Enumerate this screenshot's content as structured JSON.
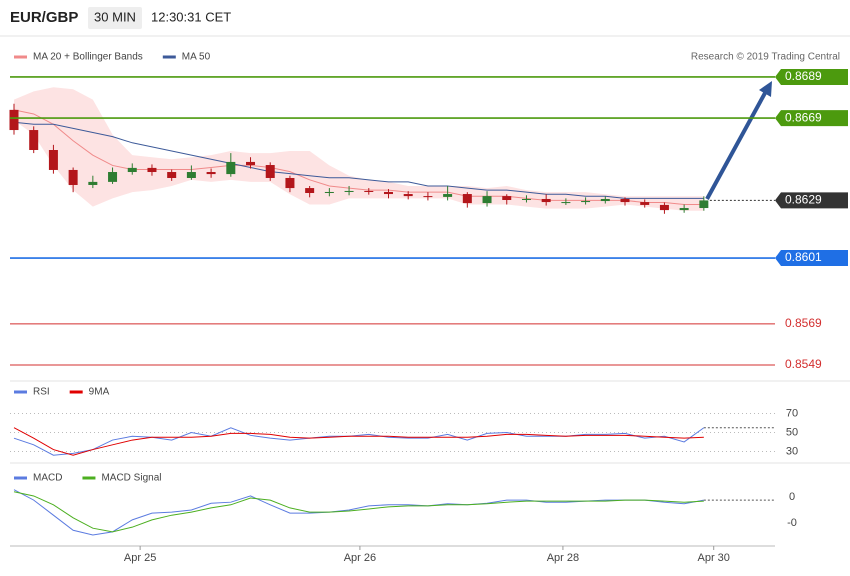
{
  "header": {
    "symbol": "EUR/GBP",
    "interval": "30 MIN",
    "time": "12:30:31 CET"
  },
  "chart_data": [
    {
      "type": "candlestick",
      "credit": "Research © 2019 Trading Central",
      "open": [
        0.8673,
        0.86632,
        0.86535,
        0.86438,
        0.86365,
        0.8638,
        0.86428,
        0.86448,
        0.86428,
        0.86399,
        0.86428,
        0.86418,
        0.86477,
        0.86462,
        0.86399,
        0.8635,
        0.86326,
        0.86331,
        0.86336,
        0.86331,
        0.86321,
        0.86311,
        0.86307,
        0.86321,
        0.86277,
        0.86311,
        0.86292,
        0.86297,
        0.86282,
        0.86282,
        0.86287,
        0.86297,
        0.86282,
        0.86268,
        0.86243,
        0.86253
      ],
      "high": [
        0.8676,
        0.8665,
        0.8656,
        0.8645,
        0.8641,
        0.8645,
        0.8647,
        0.86465,
        0.8644,
        0.8646,
        0.86445,
        0.8652,
        0.865,
        0.86475,
        0.8641,
        0.8636,
        0.8635,
        0.8636,
        0.8635,
        0.86345,
        0.86335,
        0.8633,
        0.8636,
        0.8633,
        0.86335,
        0.8632,
        0.86315,
        0.8632,
        0.863,
        0.86305,
        0.8631,
        0.86305,
        0.86295,
        0.8628,
        0.8627,
        0.8631
      ],
      "low": [
        0.8661,
        0.8652,
        0.8642,
        0.8633,
        0.8635,
        0.8637,
        0.86415,
        0.8641,
        0.86385,
        0.8639,
        0.864,
        0.86405,
        0.86445,
        0.86385,
        0.8633,
        0.86305,
        0.8631,
        0.86315,
        0.86318,
        0.863,
        0.86295,
        0.8629,
        0.8629,
        0.86255,
        0.8626,
        0.8627,
        0.8628,
        0.86265,
        0.86268,
        0.8627,
        0.86275,
        0.86265,
        0.86255,
        0.86225,
        0.8623,
        0.8624
      ],
      "close": [
        0.86632,
        0.86535,
        0.86438,
        0.86365,
        0.8638,
        0.86428,
        0.86448,
        0.86428,
        0.86399,
        0.86428,
        0.86418,
        0.86477,
        0.86462,
        0.86399,
        0.8635,
        0.86326,
        0.86331,
        0.86336,
        0.86331,
        0.86321,
        0.86311,
        0.86307,
        0.86321,
        0.86277,
        0.86311,
        0.86292,
        0.86297,
        0.86282,
        0.86282,
        0.86287,
        0.86297,
        0.86282,
        0.86268,
        0.86243,
        0.86253,
        0.8629
      ],
      "up_color": "#2e7d32",
      "down_color": "#b3161b",
      "series": [
        {
          "name": "MA 20 + Bollinger Bands",
          "color": "#f08a8a",
          "band_color": "#fde3e3",
          "values": [
            0.8673,
            0.8671,
            0.8666,
            0.8658,
            0.8651,
            0.8646,
            0.8644,
            0.8644,
            0.8644,
            0.8644,
            0.8645,
            0.8646,
            0.8646,
            0.8645,
            0.8643,
            0.8639,
            0.8636,
            0.8635,
            0.8634,
            0.8634,
            0.8633,
            0.8633,
            0.8633,
            0.8631,
            0.8631,
            0.8631,
            0.863,
            0.8629,
            0.8629,
            0.8629,
            0.8629,
            0.8629,
            0.8628,
            0.8628,
            0.8627,
            0.8627
          ],
          "upper": [
            0.8678,
            0.8682,
            0.8684,
            0.8683,
            0.8678,
            0.8661,
            0.8651,
            0.865,
            0.8649,
            0.865,
            0.8651,
            0.8653,
            0.8652,
            0.8652,
            0.8653,
            0.8653,
            0.8646,
            0.8641,
            0.8639,
            0.8638,
            0.8636,
            0.8636,
            0.8636,
            0.8636,
            0.8635,
            0.8636,
            0.8634,
            0.8633,
            0.8633,
            0.8633,
            0.8632,
            0.8631,
            0.8631,
            0.8631,
            0.8631,
            0.8631
          ],
          "lower": [
            0.8668,
            0.8661,
            0.8646,
            0.8634,
            0.8626,
            0.863,
            0.8633,
            0.8634,
            0.8636,
            0.8639,
            0.8638,
            0.8639,
            0.8638,
            0.8638,
            0.8632,
            0.8627,
            0.8627,
            0.863,
            0.863,
            0.863,
            0.863,
            0.863,
            0.863,
            0.8627,
            0.8627,
            0.8627,
            0.8626,
            0.8625,
            0.8625,
            0.8625,
            0.8626,
            0.8627,
            0.8626,
            0.8625,
            0.8624,
            0.8624
          ]
        },
        {
          "name": "MA 50",
          "color": "#3d5a99",
          "values": [
            0.8667,
            0.8666,
            0.8666,
            0.8664,
            0.8662,
            0.866,
            0.8657,
            0.8655,
            0.8653,
            0.8651,
            0.8649,
            0.8647,
            0.8645,
            0.8643,
            0.8642,
            0.8641,
            0.864,
            0.864,
            0.8639,
            0.8638,
            0.8638,
            0.8636,
            0.8636,
            0.8635,
            0.8634,
            0.8634,
            0.8633,
            0.8632,
            0.8632,
            0.8631,
            0.8631,
            0.863,
            0.863,
            0.863,
            0.863,
            0.863
          ]
        }
      ],
      "levels": [
        {
          "value": 0.8689,
          "color": "#4c9a0e",
          "filled": true
        },
        {
          "value": 0.8669,
          "color": "#4c9a0e",
          "filled": true
        },
        {
          "value": 0.8601,
          "color": "#1f6fe5",
          "filled": true
        },
        {
          "value": 0.8569,
          "color": "#d32f2f",
          "filled": false
        },
        {
          "value": 0.8549,
          "color": "#d32f2f",
          "filled": false
        }
      ],
      "current": 0.8629,
      "current_color": "#333333",
      "ylim": [
        0.85427,
        0.87089
      ]
    },
    {
      "type": "line",
      "series": [
        {
          "name": "RSI",
          "color": "#5b7be0",
          "values": [
            44,
            37,
            26,
            28,
            32,
            42,
            46,
            45,
            42,
            50,
            46,
            55,
            47,
            44,
            42,
            44,
            46,
            46,
            48,
            45,
            44,
            44,
            48,
            42,
            49,
            50,
            46,
            46,
            46,
            48,
            48,
            49,
            44,
            46,
            40,
            55
          ]
        },
        {
          "name": "9MA",
          "color": "#e00000",
          "values": [
            55,
            44,
            32,
            26,
            32,
            37,
            42,
            45,
            45,
            45,
            46,
            49,
            49,
            48,
            45,
            44,
            45,
            46,
            46,
            46,
            45,
            45,
            45,
            45,
            46,
            48,
            48,
            47,
            46,
            47,
            47,
            47,
            46,
            45,
            44,
            45
          ]
        }
      ],
      "ylim": [
        21,
        80
      ],
      "yticks": [
        30,
        50,
        70
      ],
      "grid": true
    },
    {
      "type": "line",
      "series": [
        {
          "name": "MACD",
          "color": "#5b7be0",
          "values": [
            0.00014,
            -6e-05,
            -0.00035,
            -0.00064,
            -0.00073,
            -0.00067,
            -0.00044,
            -0.00031,
            -0.00029,
            -0.00025,
            -0.00012,
            -0.0001,
            2e-05,
            -0.00015,
            -0.00031,
            -0.00031,
            -0.00029,
            -0.00025,
            -0.00017,
            -0.00015,
            -0.00015,
            -0.00017,
            -0.00013,
            -0.00015,
            -0.00012,
            -6e-05,
            -6e-05,
            -0.0001,
            -0.0001,
            -8e-05,
            -6e-05,
            -6e-05,
            -6e-05,
            -0.0001,
            -0.00013,
            -6e-05
          ]
        },
        {
          "name": "MACD Signal",
          "color": "#4caf20",
          "values": [
            0.0001,
            2e-05,
            -0.00015,
            -0.0004,
            -0.0006,
            -0.00067,
            -0.00058,
            -0.00044,
            -0.00035,
            -0.00029,
            -0.00021,
            -0.00015,
            -2e-05,
            -6e-05,
            -0.00021,
            -0.00029,
            -0.00029,
            -0.00027,
            -0.00023,
            -0.00019,
            -0.00017,
            -0.00017,
            -0.00015,
            -0.00015,
            -0.00013,
            -0.0001,
            -8e-05,
            -8e-05,
            -8e-05,
            -8e-05,
            -8e-05,
            -6e-05,
            -6e-05,
            -8e-05,
            -0.0001,
            -8e-05
          ]
        }
      ],
      "ylim": [
        -0.000923,
        0.000615
      ],
      "yticks": [
        0,
        {
          "value": -0.0005,
          "label": "-0"
        }
      ],
      "grid": false,
      "xticks": [
        {
          "value": 6.4,
          "label": "Apr 25"
        },
        {
          "value": 17.55,
          "label": "Apr 26"
        },
        {
          "value": 27.85,
          "label": "Apr 28"
        },
        {
          "value": 35.5,
          "label": "Apr 30"
        }
      ]
    }
  ]
}
